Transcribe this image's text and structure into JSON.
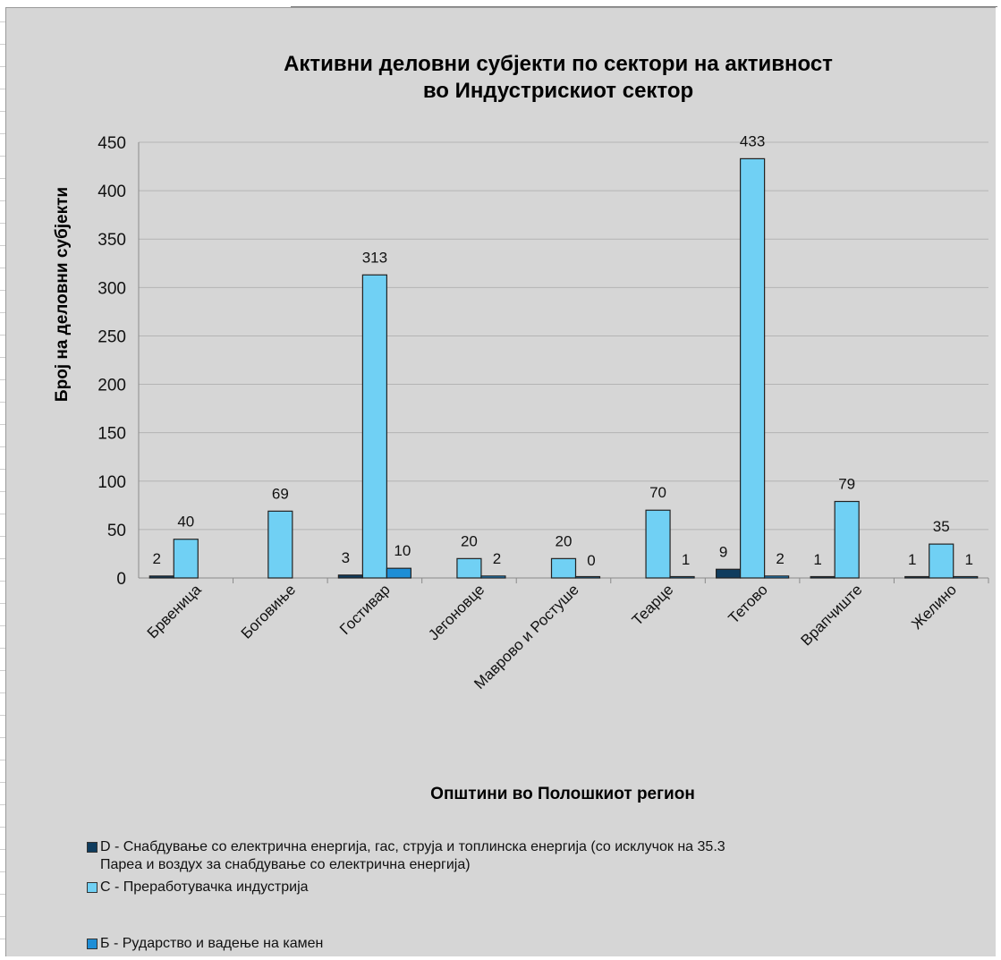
{
  "chart_data": {
    "type": "bar",
    "title_line1": "Активни деловни субјекти по сектори на активност",
    "title_line2": "во Индустрискиот сектор",
    "xlabel": "Општини во Полошкиот регион",
    "ylabel": "Број на деловни субјекти",
    "ylim": [
      0,
      450
    ],
    "yticks": [
      0,
      50,
      100,
      150,
      200,
      250,
      300,
      350,
      400,
      450
    ],
    "grid": true,
    "legend_position": "bottom",
    "categories": [
      "Брвеница",
      "Боговиње",
      "Гостивар",
      "Јегоновце",
      "Маврово и Ростуше",
      "Теарце",
      "Тетово",
      "Врапчиште",
      "Желино"
    ],
    "series": [
      {
        "name": "D - Снабдување со електрична енергија, гас, струја и топлинска енергија (со исклучок на 35.3 Пареа и воздух за снабдување со електрична енергија)",
        "name_line1": "D - Снабдување со електрична енергија, гас, струја и топлинска енергија (со исклучок на 35.3",
        "name_line2": "Пареа и воздух за снабдување со електрична енергија)",
        "color": "#0f3c5e",
        "values": [
          2,
          null,
          3,
          null,
          null,
          null,
          9,
          1,
          1
        ]
      },
      {
        "name": "C - Преработувачка индустрија",
        "color": "#70d0f4",
        "values": [
          40,
          69,
          313,
          20,
          20,
          70,
          433,
          79,
          35
        ]
      },
      {
        "name": "Б - Рударство и вадење на камен",
        "color": "#1e8ed6",
        "values": [
          null,
          null,
          10,
          2,
          0,
          1,
          2,
          null,
          1
        ]
      }
    ]
  }
}
